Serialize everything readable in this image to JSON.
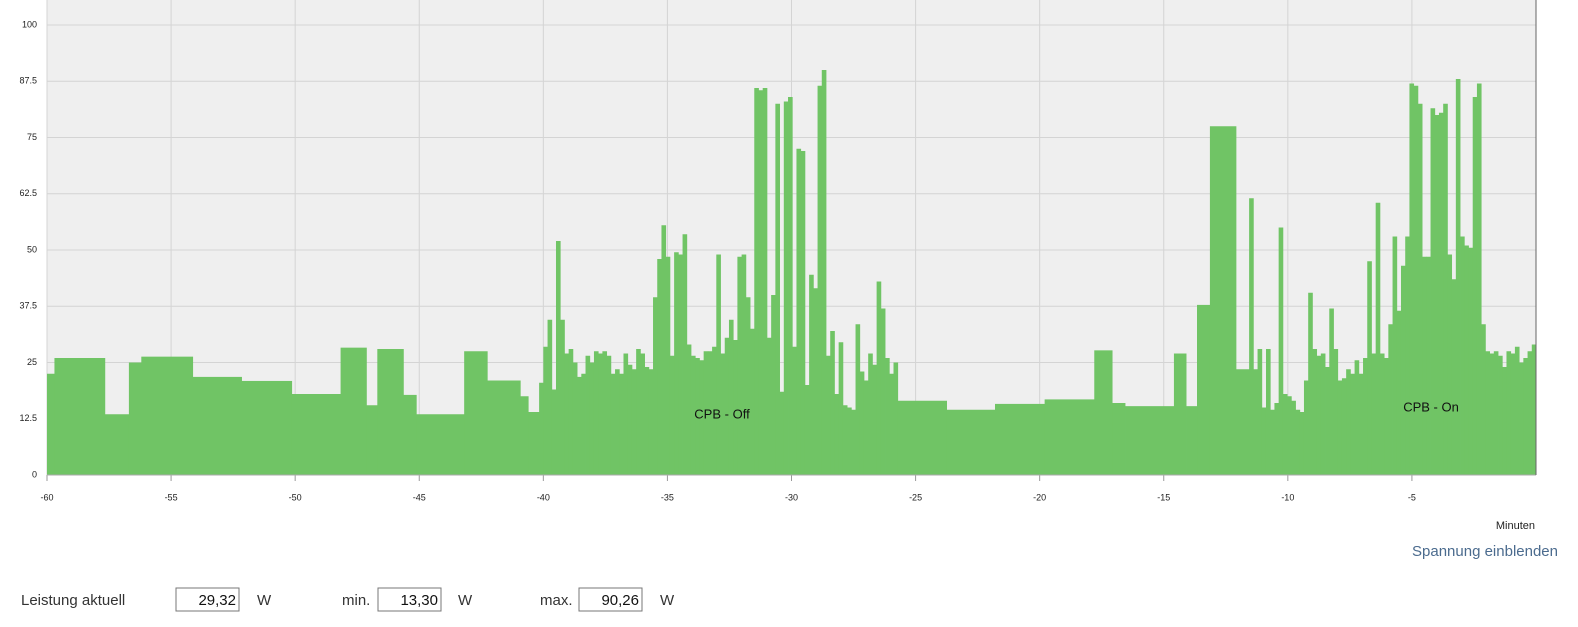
{
  "chart_data": {
    "type": "histogram",
    "xlabel": "Minuten",
    "color": "#70c465",
    "grid": true,
    "xlim": [
      -60,
      0
    ],
    "xticks": [
      -60,
      -55,
      -50,
      -45,
      -40,
      -35,
      -30,
      -25,
      -20,
      -15,
      -10,
      -5
    ],
    "ylim": [
      0,
      100
    ],
    "yticks": [
      0,
      12.5,
      25,
      37.5,
      50,
      62.5,
      75,
      87.5,
      100
    ],
    "annotations": [
      "CPB - Off",
      "CPB - On"
    ],
    "bins": [
      -60,
      -59.7,
      -57.67,
      -56.7,
      -56.2,
      -54.13,
      -52.16,
      -50.14,
      -48.17,
      -47.13,
      -46.69,
      -45.64,
      -45.12,
      -43.19,
      -42.26,
      -40.93,
      -40.61,
      -40.17,
      -40.0,
      -39.83,
      -39.66,
      -39.49,
      -39.32,
      -39.15,
      -38.98,
      -38.81,
      -38.64,
      -38.47,
      -38.3,
      -38.13,
      -37.96,
      -37.79,
      -37.62,
      -37.45,
      -37.28,
      -37.11,
      -36.94,
      -36.77,
      -36.6,
      -36.43,
      -36.26,
      -36.09,
      -35.92,
      -35.75,
      -35.58,
      -35.41,
      -35.24,
      -35.07,
      -34.9,
      -34.73,
      -34.56,
      -34.39,
      -34.22,
      -34.05,
      -33.88,
      -33.71,
      -33.54,
      -33.37,
      -33.2,
      -33.03,
      -32.86,
      -32.69,
      -32.52,
      -32.35,
      -32.18,
      -32.01,
      -31.84,
      -31.67,
      -31.5,
      -31.33,
      -31.16,
      -30.99,
      -30.82,
      -30.65,
      -30.48,
      -30.31,
      -30.14,
      -29.97,
      -29.8,
      -29.63,
      -29.46,
      -29.29,
      -29.12,
      -28.95,
      -28.78,
      -28.61,
      -28.44,
      -28.27,
      -28.1,
      -27.93,
      -27.76,
      -27.59,
      -27.42,
      -27.25,
      -27.08,
      -26.91,
      -26.74,
      -26.57,
      -26.4,
      -26.23,
      -26.06,
      -25.89,
      -25.72,
      -23.75,
      -21.8,
      -19.8,
      -17.8,
      -17.08,
      -16.56,
      -14.59,
      -14.1,
      -13.66,
      -13.14,
      -12.09,
      -11.56,
      -11.39,
      -11.22,
      -11.05,
      -10.88,
      -10.71,
      -10.54,
      -10.37,
      -10.2,
      -10.03,
      -9.86,
      -9.69,
      -9.52,
      -9.35,
      -9.18,
      -9.01,
      -8.84,
      -8.67,
      -8.5,
      -8.33,
      -8.16,
      -7.99,
      -7.82,
      -7.65,
      -7.48,
      -7.31,
      -7.14,
      -6.97,
      -6.8,
      -6.63,
      -6.46,
      -6.29,
      -6.12,
      -5.95,
      -5.78,
      -5.61,
      -5.44,
      -5.27,
      -5.1,
      -4.93,
      -4.76,
      -4.59,
      -4.42,
      -4.25,
      -4.08,
      -3.91,
      -3.74,
      -3.57,
      -3.4,
      -3.23,
      -3.06,
      -2.89,
      -2.72,
      -2.55,
      -2.38,
      -2.21,
      -2.04,
      -1.87,
      -1.7,
      -1.53,
      -1.36,
      -1.19,
      -1.02,
      -0.85,
      -0.68,
      -0.51,
      -0.34,
      -0.17,
      0
    ],
    "values": [
      22.5,
      26,
      13.5,
      25,
      26.3,
      21.8,
      20.9,
      18,
      28.3,
      15.5,
      28,
      17.8,
      13.5,
      27.5,
      21,
      17.5,
      14,
      20.5,
      28.5,
      34.5,
      19,
      52,
      34.5,
      27,
      28,
      25,
      21.8,
      22.5,
      26.5,
      25,
      27.5,
      27,
      27.5,
      26.5,
      22.5,
      23.5,
      22.5,
      27,
      24.5,
      23.5,
      28,
      27,
      24,
      23.5,
      39.5,
      48,
      55.5,
      48.5,
      26.5,
      49.5,
      49,
      53.5,
      29,
      26.5,
      26,
      25.5,
      27.5,
      27.5,
      28.5,
      49,
      27,
      30.5,
      34.5,
      30,
      48.5,
      49,
      39.5,
      32.5,
      86,
      85.5,
      86,
      30.5,
      40,
      82.5,
      18.5,
      83,
      84,
      28.5,
      72.5,
      72,
      20,
      44.5,
      41.5,
      86.5,
      90,
      26.5,
      32,
      18,
      29.5,
      15.5,
      15,
      14.5,
      33.5,
      23,
      21,
      27,
      24.5,
      43,
      37,
      26,
      22.5,
      25,
      16.5,
      14.5,
      15.8,
      16.8,
      27.7,
      16,
      15.3,
      27,
      15.3,
      37.8,
      77.5,
      23.5,
      61.5,
      23.5,
      28,
      15,
      28,
      14.5,
      16,
      55,
      18,
      17.5,
      16.5,
      14.5,
      14,
      21,
      40.5,
      28,
      26.5,
      27,
      24,
      37,
      28,
      21,
      21.5,
      23.5,
      22.5,
      25.5,
      22.5,
      26,
      47.5,
      27,
      60.5,
      27,
      26,
      33.5,
      53,
      36.5,
      46.5,
      53,
      87,
      86.5,
      82.5,
      48.5,
      48.5,
      81.5,
      80,
      80.5,
      82.5,
      49,
      43.5,
      88,
      53,
      51,
      50.5,
      84,
      87,
      33.5,
      27.5,
      27,
      27.5,
      26.5,
      24,
      27.5,
      27,
      28.5,
      25,
      26,
      27.5,
      29
    ]
  },
  "controls": {
    "toggle": "Spannung einblenden",
    "fields": [
      {
        "label": "Leistung aktuell",
        "value": "29,32",
        "unit": "W"
      },
      {
        "label": "min.",
        "value": "13,30",
        "unit": "W"
      },
      {
        "label": "max.",
        "value": "90,26",
        "unit": "W"
      }
    ]
  }
}
